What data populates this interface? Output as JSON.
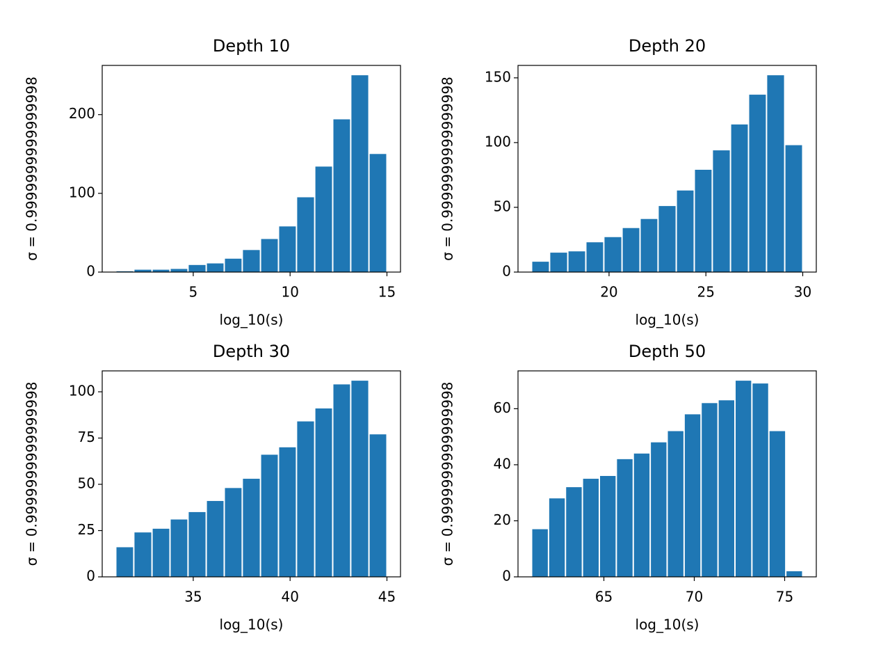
{
  "chart_data": [
    {
      "type": "histogram",
      "title": "Depth 10",
      "xlabel": "log_10(s)",
      "ylabel": "σ = 0.9999999999999998",
      "color": "#1f77b4",
      "bins": [
        1,
        1.93,
        2.87,
        3.8,
        4.73,
        5.67,
        6.6,
        7.53,
        8.47,
        9.4,
        10.33,
        11.27,
        12.2,
        13.13,
        14.07,
        15
      ],
      "values": [
        1,
        3,
        3,
        4,
        9,
        11,
        17,
        28,
        42,
        58,
        95,
        134,
        194,
        250,
        150
      ],
      "xlim": [
        0.3,
        15.7
      ],
      "xticks": [
        5,
        10,
        15
      ],
      "ylim": [
        0,
        262.5
      ],
      "yticks": [
        0,
        100,
        200
      ]
    },
    {
      "type": "histogram",
      "title": "Depth 20",
      "xlabel": "log_10(s)",
      "ylabel": "σ = 0.9999999999999998",
      "color": "#1f77b4",
      "bins": [
        16,
        16.93,
        17.87,
        18.8,
        19.73,
        20.67,
        21.6,
        22.53,
        23.47,
        24.4,
        25.33,
        26.27,
        27.2,
        28.13,
        29.07,
        30
      ],
      "values": [
        8,
        15,
        16,
        23,
        27,
        34,
        41,
        51,
        63,
        79,
        94,
        114,
        137,
        152,
        98
      ],
      "xlim": [
        15.3,
        30.7
      ],
      "xticks": [
        20,
        25,
        30
      ],
      "ylim": [
        0,
        159.6
      ],
      "yticks": [
        0,
        50,
        100,
        150
      ]
    },
    {
      "type": "histogram",
      "title": "Depth 30",
      "xlabel": "log_10(s)",
      "ylabel": "σ = 0.9999999999999998",
      "color": "#1f77b4",
      "bins": [
        31,
        31.93,
        32.87,
        33.8,
        34.73,
        35.67,
        36.6,
        37.53,
        38.47,
        39.4,
        40.33,
        41.27,
        42.2,
        43.13,
        44.07,
        45
      ],
      "values": [
        16,
        24,
        26,
        31,
        35,
        41,
        48,
        53,
        66,
        70,
        84,
        91,
        104,
        106,
        77
      ],
      "xlim": [
        30.3,
        45.7
      ],
      "xticks": [
        35,
        40,
        45
      ],
      "ylim": [
        0,
        111.3
      ],
      "yticks": [
        0,
        25,
        50,
        75,
        100
      ]
    },
    {
      "type": "histogram",
      "title": "Depth 50",
      "xlabel": "log_10(s)",
      "ylabel": "σ = 0.9999999999999998",
      "color": "#1f77b4",
      "bins": [
        61,
        61.9375,
        62.875,
        63.8125,
        64.75,
        65.6875,
        66.625,
        67.5625,
        68.5,
        69.4375,
        70.375,
        71.3125,
        72.25,
        73.1875,
        74.125,
        75.0625,
        76
      ],
      "values": [
        17,
        28,
        32,
        35,
        36,
        42,
        44,
        48,
        52,
        58,
        62,
        63,
        70,
        69,
        52,
        2
      ],
      "xlim": [
        60.25,
        76.75
      ],
      "xticks": [
        65,
        70,
        75
      ],
      "ylim": [
        0,
        73.5
      ],
      "yticks": [
        0,
        20,
        40,
        60
      ]
    }
  ]
}
